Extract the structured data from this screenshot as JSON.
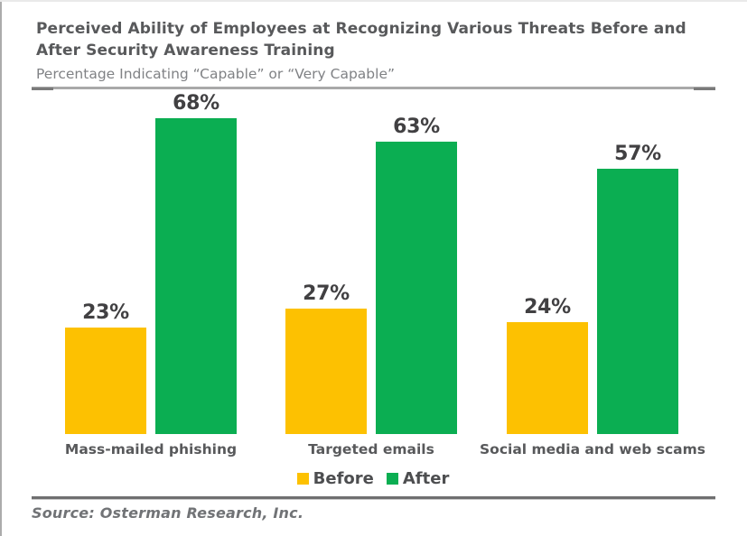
{
  "header": {
    "title_lines": [
      "Perceived Ability of Employees at Recognizing Various Threats Before and",
      "After Security Awareness Training"
    ],
    "subtitle": "Percentage Indicating “Capable” or “Very Capable”"
  },
  "chart_data": {
    "type": "bar",
    "title": "Perceived Ability of Employees at Recognizing Various Threats Before and After Security Awareness Training",
    "subtitle": "Percentage Indicating “Capable” or “Very Capable”",
    "categories": [
      "Mass-mailed phishing",
      "Targeted emails",
      "Social media and web scams"
    ],
    "series": [
      {
        "name": "Before",
        "color": "#FDC101",
        "values": [
          23,
          27,
          24
        ]
      },
      {
        "name": "After",
        "color": "#0BAE52",
        "values": [
          68,
          63,
          57
        ]
      }
    ],
    "value_suffix": "%",
    "data_labels": true,
    "ylim": [
      0,
      73
    ],
    "grid": false,
    "legend_position": "bottom"
  },
  "source_note": "Source: Osterman Research, Inc.",
  "colors": {
    "before": "#FDC101",
    "after": "#0BAE52",
    "title_text": "#58595B",
    "subtitle_text": "#808285",
    "value_label_text": "#414042",
    "rule_light": "#A9A9A9",
    "rule_dark": "#6F6F70"
  }
}
